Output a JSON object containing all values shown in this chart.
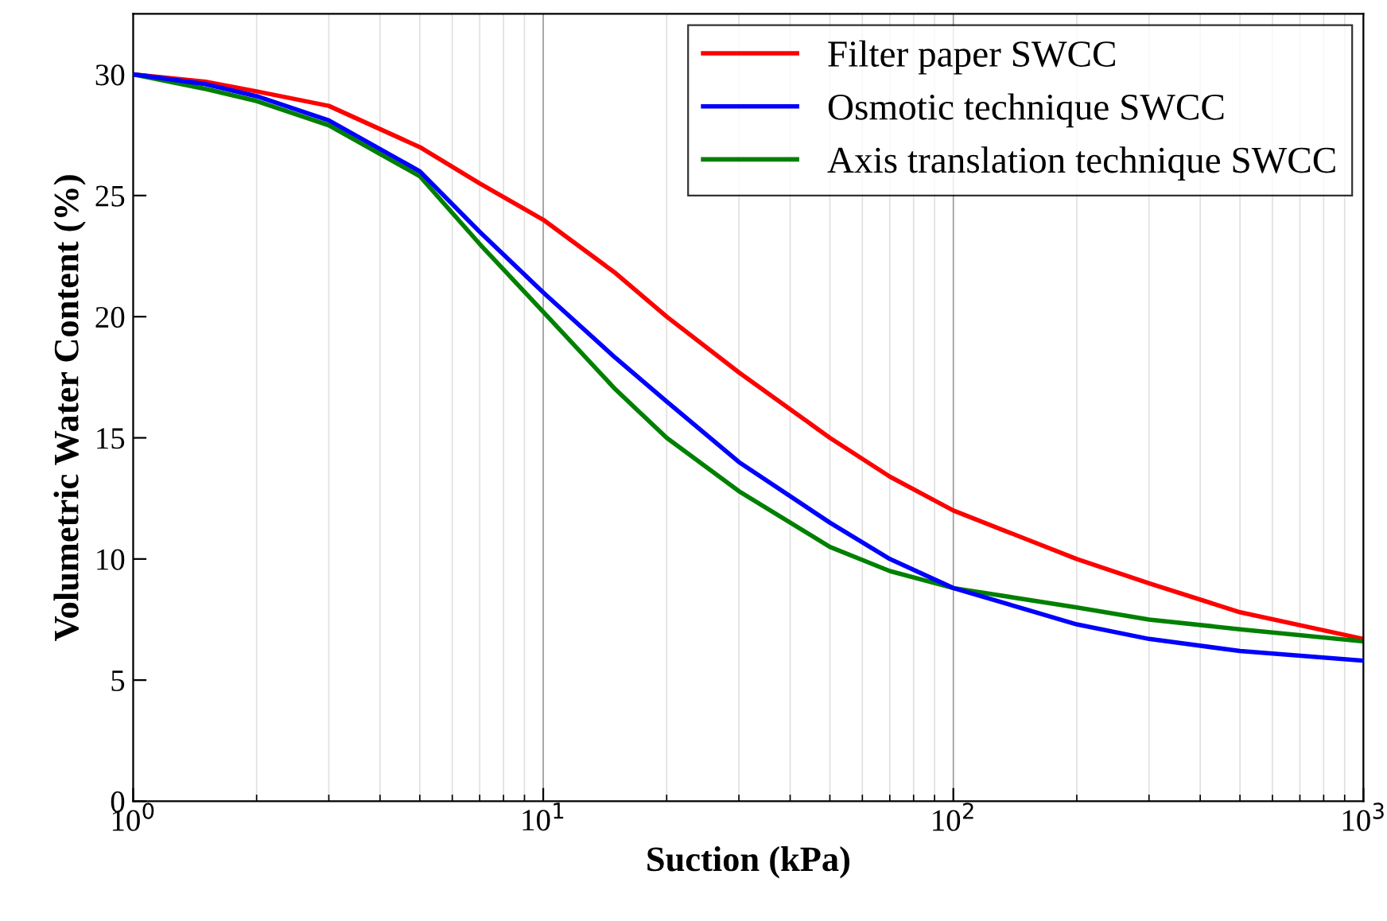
{
  "chart_data": {
    "type": "line",
    "xlabel": "Suction (kPa)",
    "ylabel": "Volumetric Water Content (%)",
    "log": "x",
    "xlim": [
      1,
      1000
    ],
    "ylim": [
      0,
      32.5
    ],
    "xticks": [
      {
        "value": 1,
        "label": "10$^{0}$"
      },
      {
        "value": 10,
        "label": "10$^{1}$"
      },
      {
        "value": 100,
        "label": "10$^{2}$"
      },
      {
        "value": 1000,
        "label": "10$^{3}$"
      }
    ],
    "yticks": [
      0,
      5,
      10,
      15,
      20,
      25,
      30
    ],
    "grid": "x",
    "legend": "top right",
    "marker": "none",
    "line_style": "solid",
    "x": [
      1,
      1.5,
      2,
      3,
      5,
      7,
      10,
      15,
      20,
      30,
      50,
      70,
      100,
      200,
      300,
      500,
      1000
    ],
    "series": [
      {
        "name": "Filter paper SWCC",
        "color": "#ff0000",
        "values": [
          30,
          29.7,
          29.3,
          28.7,
          27,
          25.5,
          24,
          21.8,
          20,
          17.7,
          15,
          13.4,
          12,
          10,
          9,
          7.8,
          6.7
        ]
      },
      {
        "name": "Osmotic technique SWCC",
        "color": "#0000ff",
        "values": [
          30,
          29.6,
          29.1,
          28.1,
          26,
          23.5,
          21,
          18.3,
          16.5,
          14,
          11.5,
          10,
          8.8,
          7.3,
          6.7,
          6.2,
          5.8
        ]
      },
      {
        "name": "Axis translation technique SWCC",
        "color": "#008000",
        "values": [
          30,
          29.4,
          28.9,
          27.9,
          25.8,
          23,
          20.2,
          17,
          15,
          12.8,
          10.5,
          9.5,
          8.8,
          8,
          7.5,
          7.1,
          6.6
        ]
      }
    ]
  }
}
